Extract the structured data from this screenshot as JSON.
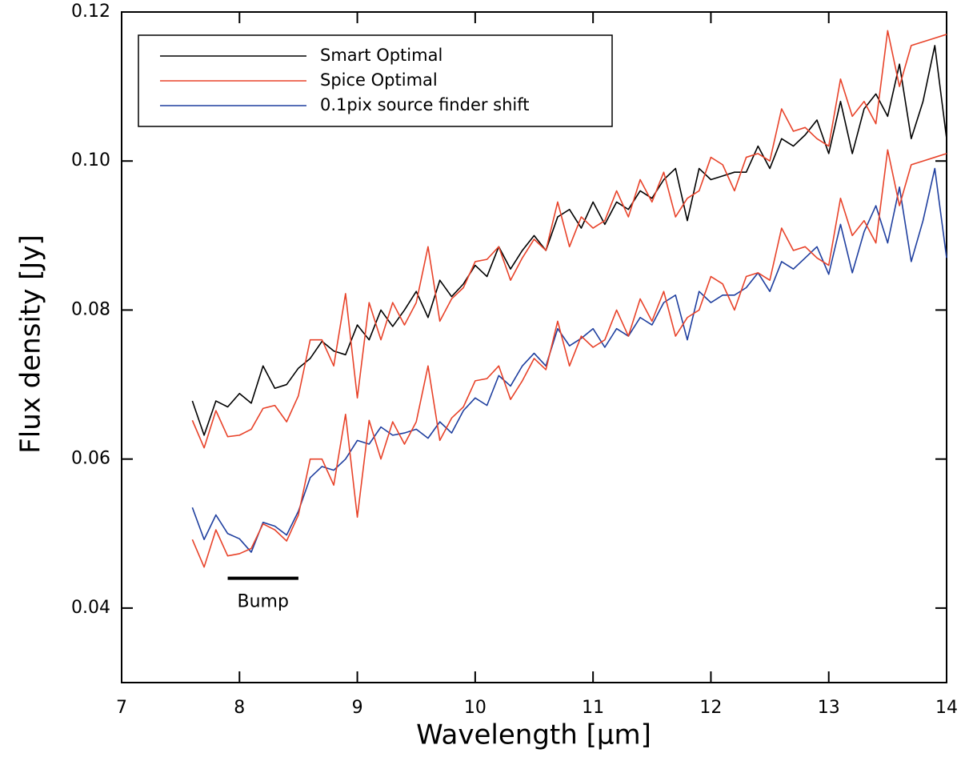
{
  "chart_data": {
    "type": "line",
    "x_label": "Wavelength [μm]",
    "y_label": "Flux density [Jy]",
    "xlim": [
      7,
      14
    ],
    "ylim": [
      0.03,
      0.12
    ],
    "xticks": [
      7,
      8,
      9,
      10,
      11,
      12,
      13,
      14
    ],
    "yticks": [
      0.04,
      0.06,
      0.08,
      {
        "value": 0.1,
        "label": "0.10"
      },
      0.12
    ],
    "legend": "upper left",
    "x": [
      7.6,
      7.7,
      7.8,
      7.9,
      8.0,
      8.1,
      8.2,
      8.3,
      8.4,
      8.5,
      8.6,
      8.7,
      8.8,
      8.9,
      9.0,
      9.1,
      9.2,
      9.3,
      9.4,
      9.5,
      9.6,
      9.7,
      9.8,
      9.9,
      10.0,
      10.1,
      10.2,
      10.3,
      10.4,
      10.5,
      10.6,
      10.7,
      10.8,
      10.9,
      11.0,
      11.1,
      11.2,
      11.3,
      11.4,
      11.5,
      11.6,
      11.7,
      11.8,
      11.9,
      12.0,
      12.1,
      12.2,
      12.3,
      12.4,
      12.5,
      12.6,
      12.7,
      12.8,
      12.9,
      13.0,
      13.1,
      13.2,
      13.3,
      13.4,
      13.5,
      13.6,
      13.7,
      13.8,
      13.9,
      14.0
    ],
    "series": [
      {
        "name": "Smart Optimal",
        "color": "#000000",
        "values": [
          0.0678,
          0.0632,
          0.0678,
          0.067,
          0.0688,
          0.0675,
          0.0725,
          0.0695,
          0.07,
          0.0722,
          0.0735,
          0.0758,
          0.0745,
          0.074,
          0.078,
          0.076,
          0.08,
          0.0778,
          0.08,
          0.0825,
          0.079,
          0.084,
          0.0818,
          0.0835,
          0.086,
          0.0845,
          0.0885,
          0.0855,
          0.088,
          0.09,
          0.088,
          0.0925,
          0.0935,
          0.091,
          0.0945,
          0.0915,
          0.0945,
          0.0935,
          0.096,
          0.095,
          0.0975,
          0.099,
          0.092,
          0.099,
          0.0975,
          0.098,
          0.0985,
          0.0985,
          0.102,
          0.099,
          0.103,
          0.102,
          0.1035,
          0.1055,
          0.101,
          0.108,
          0.101,
          0.107,
          0.109,
          0.106,
          0.113,
          0.103,
          0.108,
          0.1155,
          0.103
        ]
      },
      {
        "name": "Spice Optimal",
        "color": "#e8432a",
        "values": [
          0.0652,
          0.0615,
          0.0665,
          0.063,
          0.0632,
          0.064,
          0.0668,
          0.0672,
          0.065,
          0.0685,
          0.076,
          0.076,
          0.0725,
          0.0822,
          0.0682,
          0.081,
          0.076,
          0.081,
          0.078,
          0.081,
          0.0885,
          0.0785,
          0.0815,
          0.083,
          0.0865,
          0.0868,
          0.0885,
          0.084,
          0.087,
          0.0895,
          0.088,
          0.0945,
          0.0885,
          0.0925,
          0.091,
          0.092,
          0.096,
          0.0925,
          0.0975,
          0.0945,
          0.0985,
          0.0925,
          0.095,
          0.096,
          0.1005,
          0.0995,
          0.096,
          0.1005,
          0.101,
          0.1,
          0.107,
          0.104,
          0.1045,
          0.103,
          0.102,
          0.111,
          0.106,
          0.108,
          0.105,
          0.1175,
          0.11,
          0.1155,
          0.116,
          0.1165,
          0.117
        ]
      },
      {
        "name": "0.1pix source finder shift",
        "color": "#1f3f9f",
        "values": [
          0.0535,
          0.0492,
          0.0525,
          0.05,
          0.0493,
          0.0475,
          0.0515,
          0.051,
          0.0498,
          0.053,
          0.0575,
          0.059,
          0.0585,
          0.06,
          0.0625,
          0.062,
          0.0643,
          0.0632,
          0.0635,
          0.064,
          0.0628,
          0.065,
          0.0635,
          0.0665,
          0.0682,
          0.0672,
          0.0712,
          0.0698,
          0.0725,
          0.0742,
          0.0725,
          0.0775,
          0.0752,
          0.0762,
          0.0775,
          0.075,
          0.0775,
          0.0765,
          0.079,
          0.078,
          0.081,
          0.082,
          0.076,
          0.0825,
          0.081,
          0.082,
          0.082,
          0.083,
          0.085,
          0.0825,
          0.0865,
          0.0855,
          0.087,
          0.0885,
          0.0848,
          0.0915,
          0.085,
          0.0905,
          0.094,
          0.089,
          0.0965,
          0.0865,
          0.092,
          0.099,
          0.087
        ]
      },
      {
        "color": "#e8432a",
        "values": [
          0.0492,
          0.0455,
          0.0505,
          0.047,
          0.0473,
          0.048,
          0.0513,
          0.0505,
          0.049,
          0.0525,
          0.06,
          0.06,
          0.0565,
          0.066,
          0.0522,
          0.0652,
          0.06,
          0.065,
          0.062,
          0.065,
          0.0725,
          0.0625,
          0.0655,
          0.067,
          0.0705,
          0.0708,
          0.0725,
          0.068,
          0.0705,
          0.0735,
          0.072,
          0.0785,
          0.0725,
          0.0765,
          0.075,
          0.076,
          0.08,
          0.0765,
          0.0815,
          0.0785,
          0.0825,
          0.0765,
          0.079,
          0.08,
          0.0845,
          0.0835,
          0.08,
          0.0845,
          0.085,
          0.084,
          0.091,
          0.088,
          0.0885,
          0.087,
          0.086,
          0.095,
          0.09,
          0.092,
          0.089,
          0.1015,
          0.094,
          0.0995,
          0.1,
          0.1005,
          0.101
        ]
      }
    ],
    "annotations": [
      {
        "text": "Bump",
        "x": [
          7.9,
          8.5
        ],
        "y": 0.044
      }
    ]
  }
}
